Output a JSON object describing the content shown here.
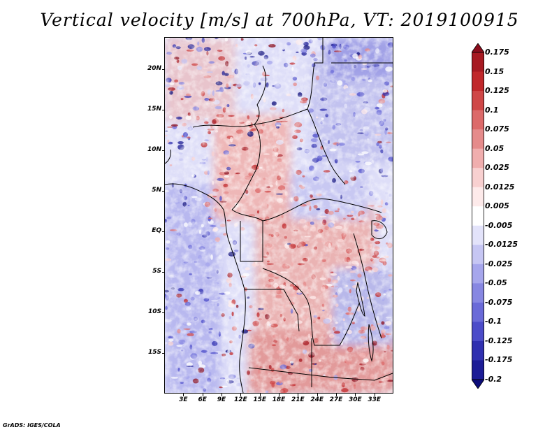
{
  "title": "Vertical velocity [m/s] at 700hPa, VT: 2019100915",
  "footer": "GrADS: IGES/COLA",
  "chart_data": {
    "type": "heatmap",
    "title": "Vertical velocity [m/s] at 700hPa, VT: 2019100915",
    "variable": "Vertical velocity",
    "unit": "m/s",
    "level": "700hPa",
    "valid_time": "2019100915",
    "lon_range": [
      0,
      36
    ],
    "lat_range": [
      -20,
      24
    ],
    "y_ticks": [
      "20N",
      "15N",
      "10N",
      "5N",
      "EQ",
      "5S",
      "10S",
      "15S"
    ],
    "y_tick_values": [
      20,
      15,
      10,
      5,
      0,
      -5,
      -10,
      -15
    ],
    "x_ticks": [
      "3E",
      "6E",
      "9E",
      "12E",
      "15E",
      "18E",
      "21E",
      "24E",
      "27E",
      "30E",
      "33E"
    ],
    "x_tick_values": [
      3,
      6,
      9,
      12,
      15,
      18,
      21,
      24,
      27,
      30,
      33
    ],
    "colorbar": {
      "labels": [
        "0.175",
        "0.15",
        "0.125",
        "0.1",
        "0.075",
        "0.05",
        "0.025",
        "0.0125",
        "0.005",
        "-0.005",
        "-0.0125",
        "-0.025",
        "-0.05",
        "-0.075",
        "-0.1",
        "-0.125",
        "-0.175",
        "-0.2"
      ],
      "colors": [
        "#8b0d1c",
        "#a71a22",
        "#c0282b",
        "#cf4747",
        "#dc6a6a",
        "#e58b8b",
        "#f0aeae",
        "#f8d0d0",
        "#fdeaea",
        "#ffffff",
        "#e3e3fa",
        "#c6c6f3",
        "#a6a6ec",
        "#8787e2",
        "#6a6ad8",
        "#4c4cc9",
        "#3030b0",
        "#1c1c96",
        "#0c0c7a"
      ]
    }
  }
}
